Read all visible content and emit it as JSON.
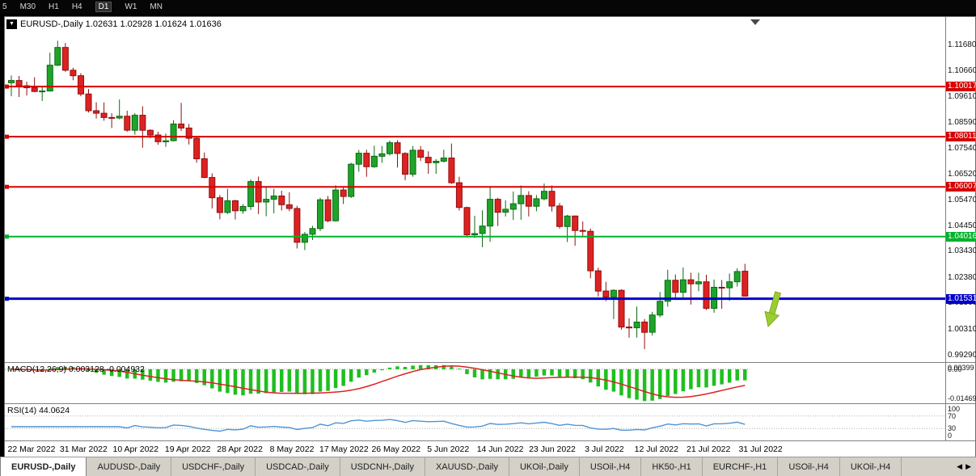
{
  "toolbar": {
    "periods": [
      "5",
      "M30",
      "H1",
      "H4",
      "D1",
      "W1",
      "MN"
    ],
    "active": "D1"
  },
  "icons": {
    "dropdown_triangle": "▼"
  },
  "chart": {
    "title_text": "EURUSD-,Daily  1.02631 1.02928 1.01624 1.01636",
    "symbol": "EURUSD-,Daily"
  },
  "chart_data": {
    "type": "candlestick",
    "title": "EURUSD-,Daily",
    "current_candle": {
      "open": 1.02631,
      "high": 1.02928,
      "low": 1.01624,
      "close": 1.01636
    },
    "ylim": [
      0.99,
      1.128
    ],
    "y_axis_labels": [
      "1.11680",
      "1.10660",
      "1.09610",
      "1.08590",
      "1.07540",
      "1.06520",
      "1.05470",
      "1.04450",
      "1.03430",
      "1.02380",
      "1.01360",
      "1.00310",
      "0.99290"
    ],
    "x_labels": [
      "22 Mar 2022",
      "31 Mar 2022",
      "10 Apr 2022",
      "19 Apr 2022",
      "28 Apr 2022",
      "8 May 2022",
      "17 May 2022",
      "26 May 2022",
      "5 Jun 2022",
      "14 Jun 2022",
      "23 Jun 2022",
      "3 Jul 2022",
      "12 Jul 2022",
      "21 Jul 2022",
      "31 Jul 2022"
    ],
    "colors": {
      "bull": {
        "body": "#1fa32a",
        "wick": "#0b6b12"
      },
      "bear": {
        "body": "#dd2222",
        "wick": "#8f0f0f"
      }
    },
    "arrow_color": "#9acd32",
    "hlines": [
      {
        "price": 1.10017,
        "label": "1.10017",
        "color": "#d60000",
        "width": 2
      },
      {
        "price": 1.08011,
        "label": "1.08011",
        "color": "#d60000",
        "width": 2
      },
      {
        "price": 1.06007,
        "label": "1.06007",
        "color": "#d60000",
        "width": 2
      },
      {
        "price": 1.04016,
        "label": "1.04016",
        "color": "#00b22d",
        "width": 2
      },
      {
        "price": 1.01531,
        "label": "1.01531",
        "color": "#0000c8",
        "width": 3
      }
    ],
    "ohlc": [
      [
        1.1017,
        1.1046,
        1.0963,
        1.1026
      ],
      [
        1.1026,
        1.1044,
        1.096,
        1.1005
      ],
      [
        1.1005,
        1.1021,
        1.0966,
        1.0997
      ],
      [
        1.0997,
        1.1039,
        1.0979,
        1.0982
      ],
      [
        1.0982,
        1.1,
        1.0944,
        1.0984
      ],
      [
        1.0984,
        1.1137,
        1.0982,
        1.1087
      ],
      [
        1.1087,
        1.1185,
        1.1084,
        1.1158
      ],
      [
        1.1158,
        1.1176,
        1.1061,
        1.1067
      ],
      [
        1.1067,
        1.1077,
        1.1027,
        1.1045
      ],
      [
        1.1045,
        1.1055,
        1.0963,
        1.0972
      ],
      [
        1.0972,
        1.0992,
        1.0898,
        1.0905
      ],
      [
        1.0905,
        1.0939,
        1.0874,
        1.0895
      ],
      [
        1.0895,
        1.0938,
        1.0865,
        1.0878
      ],
      [
        1.0878,
        1.0895,
        1.0836,
        1.0876
      ],
      [
        1.0876,
        1.095,
        1.0871,
        1.0883
      ],
      [
        1.0883,
        1.0905,
        1.0821,
        1.0827
      ],
      [
        1.0827,
        1.0895,
        1.0809,
        1.0887
      ],
      [
        1.0887,
        1.0923,
        1.0757,
        1.0827
      ],
      [
        1.0827,
        1.0831,
        1.0795,
        1.0808
      ],
      [
        1.0808,
        1.0821,
        1.0769,
        1.0781
      ],
      [
        1.0781,
        1.0814,
        1.0761,
        1.0785
      ],
      [
        1.0785,
        1.0867,
        1.0783,
        1.0852
      ],
      [
        1.0852,
        1.0936,
        1.0824,
        1.0836
      ],
      [
        1.0836,
        1.0852,
        1.077,
        1.0795
      ],
      [
        1.0795,
        1.0801,
        1.0697,
        1.0713
      ],
      [
        1.0713,
        1.0738,
        1.0635,
        1.0638
      ],
      [
        1.0638,
        1.0655,
        1.0514,
        1.0557
      ],
      [
        1.0557,
        1.0568,
        1.0471,
        1.0498
      ],
      [
        1.0498,
        1.0593,
        1.0492,
        1.0545
      ],
      [
        1.0545,
        1.0549,
        1.047,
        1.0505
      ],
      [
        1.0505,
        1.0532,
        1.0493,
        1.0522
      ],
      [
        1.0522,
        1.063,
        1.0508,
        1.0622
      ],
      [
        1.0622,
        1.0642,
        1.0492,
        1.054
      ],
      [
        1.054,
        1.0599,
        1.0483,
        1.0551
      ],
      [
        1.0551,
        1.0593,
        1.0495,
        1.0564
      ],
      [
        1.0564,
        1.0585,
        1.0506,
        1.0529
      ],
      [
        1.0529,
        1.0579,
        1.0503,
        1.0514
      ],
      [
        1.0514,
        1.0525,
        1.0354,
        1.0379
      ],
      [
        1.0379,
        1.042,
        1.0348,
        1.0411
      ],
      [
        1.0411,
        1.0445,
        1.0388,
        1.0434
      ],
      [
        1.0434,
        1.0557,
        1.0424,
        1.0549
      ],
      [
        1.0549,
        1.0564,
        1.0459,
        1.0465
      ],
      [
        1.0465,
        1.0607,
        1.0462,
        1.0588
      ],
      [
        1.0588,
        1.0598,
        1.0532,
        1.0562
      ],
      [
        1.0562,
        1.0697,
        1.0556,
        1.0691
      ],
      [
        1.0691,
        1.0748,
        1.0661,
        1.0735
      ],
      [
        1.0735,
        1.0749,
        1.0641,
        1.0681
      ],
      [
        1.0681,
        1.0765,
        1.0677,
        1.0723
      ],
      [
        1.0723,
        1.0764,
        1.0697,
        1.0733
      ],
      [
        1.0733,
        1.0786,
        1.0726,
        1.0777
      ],
      [
        1.0777,
        1.0787,
        1.0678,
        1.0734
      ],
      [
        1.0734,
        1.0739,
        1.0627,
        1.0651
      ],
      [
        1.0651,
        1.0764,
        1.0641,
        1.0747
      ],
      [
        1.0747,
        1.0764,
        1.0704,
        1.0719
      ],
      [
        1.0719,
        1.0743,
        1.0653,
        1.0697
      ],
      [
        1.0697,
        1.0712,
        1.0653,
        1.0703
      ],
      [
        1.0703,
        1.0749,
        1.0698,
        1.0716
      ],
      [
        1.0716,
        1.0774,
        1.0612,
        1.0617
      ],
      [
        1.0617,
        1.0641,
        1.0506,
        1.0518
      ],
      [
        1.0518,
        1.0521,
        1.0399,
        1.0409
      ],
      [
        1.0409,
        1.0485,
        1.0397,
        1.0414
      ],
      [
        1.0414,
        1.0507,
        1.0359,
        1.0444
      ],
      [
        1.0444,
        1.0601,
        1.0381,
        1.0551
      ],
      [
        1.0551,
        1.0557,
        1.0444,
        1.0499
      ],
      [
        1.0499,
        1.0547,
        1.0482,
        1.0511
      ],
      [
        1.0511,
        1.0582,
        1.0468,
        1.0533
      ],
      [
        1.0533,
        1.0606,
        1.0469,
        1.0566
      ],
      [
        1.0566,
        1.0583,
        1.0482,
        1.0523
      ],
      [
        1.0523,
        1.0568,
        1.0503,
        1.0553
      ],
      [
        1.0553,
        1.0614,
        1.0547,
        1.0583
      ],
      [
        1.0583,
        1.0606,
        1.0502,
        1.0524
      ],
      [
        1.0524,
        1.0536,
        1.0434,
        1.0442
      ],
      [
        1.0442,
        1.0489,
        1.038,
        1.0484
      ],
      [
        1.0484,
        1.0486,
        1.0365,
        1.0426
      ],
      [
        1.0426,
        1.0462,
        1.0405,
        1.0423
      ],
      [
        1.0423,
        1.0434,
        1.0235,
        1.0265
      ],
      [
        1.0265,
        1.0277,
        1.0162,
        1.0184
      ],
      [
        1.0184,
        1.0221,
        1.0144,
        1.016
      ],
      [
        1.016,
        1.0191,
        1.0072,
        1.0187
      ],
      [
        1.0187,
        1.0191,
        1.003,
        1.004
      ],
      [
        1.004,
        1.0075,
        0.9998,
        1.0037
      ],
      [
        1.0037,
        1.0122,
        0.9998,
        1.006
      ],
      [
        1.006,
        1.0072,
        0.9952,
        1.0019
      ],
      [
        1.0019,
        1.0101,
        1.0006,
        1.0088
      ],
      [
        1.0088,
        1.018,
        1.0079,
        1.0143
      ],
      [
        1.0143,
        1.0269,
        1.0121,
        1.0227
      ],
      [
        1.0227,
        1.025,
        1.0154,
        1.0179
      ],
      [
        1.0179,
        1.0278,
        1.0152,
        1.0229
      ],
      [
        1.0229,
        1.0257,
        1.013,
        1.0213
      ],
      [
        1.0213,
        1.0257,
        1.0183,
        1.0221
      ],
      [
        1.0221,
        1.0249,
        1.0108,
        1.0115
      ],
      [
        1.0115,
        1.023,
        1.0097,
        1.0199
      ],
      [
        1.0199,
        1.0228,
        1.0113,
        1.0197
      ],
      [
        1.0197,
        1.0254,
        1.0145,
        1.0221
      ],
      [
        1.0221,
        1.0275,
        1.0202,
        1.0262
      ],
      [
        1.02631,
        1.02928,
        1.01624,
        1.01636
      ]
    ],
    "indicators": {
      "macd": {
        "label": "MACD(12,26,9) 0.003128 -0.004932",
        "fast": 12,
        "slow": 26,
        "signal": 9,
        "axis_labels": [
          "0.00399",
          "0.00",
          "-0.01469"
        ],
        "histogram_color": "#1fbf1f",
        "signal_color": "#dd2222",
        "values": {
          "main": 0.003128,
          "signal": -0.004932
        }
      },
      "rsi": {
        "label": "RSI(14) 44.0624",
        "period": 14,
        "current": 44.0624,
        "levels": [
          "100",
          "70",
          "30",
          "0"
        ],
        "level_lines": [
          70,
          30
        ],
        "color": "#4f94d4"
      }
    }
  },
  "tabs": {
    "items": [
      {
        "label": "EURUSD-,Daily",
        "active": true
      },
      {
        "label": "AUDUSD-,Daily",
        "active": false
      },
      {
        "label": "USDCHF-,Daily",
        "active": false
      },
      {
        "label": "USDCAD-,Daily",
        "active": false
      },
      {
        "label": "USDCNH-,Daily",
        "active": false
      },
      {
        "label": "XAUUSD-,Daily",
        "active": false
      },
      {
        "label": "UKOil-,Daily",
        "active": false
      },
      {
        "label": "USOil-,H4",
        "active": false
      },
      {
        "label": "HK50-,H1",
        "active": false
      },
      {
        "label": "EURCHF-,H1",
        "active": false
      },
      {
        "label": "USOil-,H4",
        "active": false
      },
      {
        "label": "UKOil-,H4",
        "active": false
      }
    ],
    "scroll_left": "◀",
    "scroll_right": "▶"
  }
}
